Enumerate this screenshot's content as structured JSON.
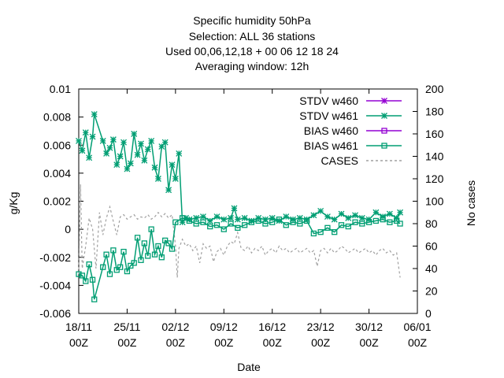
{
  "chart_data": {
    "type": "line",
    "title_lines": [
      "Specific humidity 50hPa",
      "Selection: ALL     36 stations",
      "Used  00,06,12,18  + 00 06 12 18 24",
      "Averaging window: 12h"
    ],
    "xlabel": "Date",
    "ylabel": "g/Kg",
    "y2label": "No cases",
    "ylim": [
      -0.006,
      0.01
    ],
    "y2lim": [
      0,
      200
    ],
    "xlim": [
      0,
      49
    ],
    "x_ticks": [
      {
        "x": 0,
        "l1": "18/11",
        "l2": "00Z"
      },
      {
        "x": 7,
        "l1": "25/11",
        "l2": "00Z"
      },
      {
        "x": 14,
        "l1": "02/12",
        "l2": "00Z"
      },
      {
        "x": 21,
        "l1": "09/12",
        "l2": "00Z"
      },
      {
        "x": 28,
        "l1": "16/12",
        "l2": "00Z"
      },
      {
        "x": 35,
        "l1": "23/12",
        "l2": "00Z"
      },
      {
        "x": 42,
        "l1": "30/12",
        "l2": "00Z"
      },
      {
        "x": 49,
        "l1": "06/01",
        "l2": "00Z"
      }
    ],
    "y_ticks": [
      "0.01",
      "0.008",
      "0.006",
      "0.004",
      "0.002",
      "0",
      "-0.002",
      "-0.004",
      "-0.006"
    ],
    "y_tick_values": [
      0.01,
      0.008,
      0.006,
      0.004,
      0.002,
      0,
      -0.002,
      -0.004,
      -0.006
    ],
    "y2_ticks": [
      "200",
      "180",
      "160",
      "140",
      "120",
      "100",
      "80",
      "60",
      "40",
      "20",
      "0"
    ],
    "y2_tick_values": [
      200,
      180,
      160,
      140,
      120,
      100,
      80,
      60,
      40,
      20,
      0
    ],
    "legend_position": "top-right",
    "grid": false,
    "series": [
      {
        "name": "STDV w460",
        "axis": "y1",
        "marker": "star",
        "color": "#9400d3",
        "points": []
      },
      {
        "name": "STDV w461",
        "axis": "y1",
        "marker": "star",
        "color": "#009e73",
        "points": [
          [
            0,
            0.0063
          ],
          [
            0.5,
            0.0056
          ],
          [
            1,
            0.0069
          ],
          [
            1.5,
            0.0051
          ],
          [
            2,
            0.0066
          ],
          [
            2.25,
            0.0082
          ],
          [
            3.5,
            0.0063
          ],
          [
            4,
            0.0054
          ],
          [
            4.5,
            0.0058
          ],
          [
            5,
            0.0064
          ],
          [
            5.5,
            0.0046
          ],
          [
            6,
            0.0052
          ],
          [
            6.5,
            0.0062
          ],
          [
            7,
            0.0043
          ],
          [
            7.5,
            0.0047
          ],
          [
            8,
            0.0068
          ],
          [
            8.5,
            0.0053
          ],
          [
            9,
            0.0061
          ],
          [
            9.5,
            0.0049
          ],
          [
            10,
            0.0057
          ],
          [
            10.5,
            0.0063
          ],
          [
            11,
            0.0044
          ],
          [
            11.5,
            0.0036
          ],
          [
            12,
            0.0059
          ],
          [
            12.5,
            0.0062
          ],
          [
            13,
            0.0028
          ],
          [
            13.5,
            0.0046
          ],
          [
            14,
            0.0036
          ],
          [
            14.5,
            0.0054
          ],
          [
            15,
            0.0005
          ],
          [
            15.5,
            0.0008
          ],
          [
            16,
            0.0007
          ],
          [
            17,
            0.0008
          ],
          [
            18,
            0.0009
          ],
          [
            19,
            0.0006
          ],
          [
            20,
            0.0009
          ],
          [
            21,
            0.0007
          ],
          [
            22,
            0.0008
          ],
          [
            22.5,
            0.0015
          ],
          [
            23,
            0.0007
          ],
          [
            24,
            0.0008
          ],
          [
            25,
            0.0006
          ],
          [
            26,
            0.0008
          ],
          [
            27,
            0.0007
          ],
          [
            28,
            0.0008
          ],
          [
            29,
            0.0006
          ],
          [
            30,
            0.0009
          ],
          [
            31,
            0.0007
          ],
          [
            32,
            0.0008
          ],
          [
            33,
            0.0007
          ],
          [
            34,
            0.001
          ],
          [
            35,
            0.0013
          ],
          [
            36,
            0.0009
          ],
          [
            37,
            0.0007
          ],
          [
            38,
            0.0011
          ],
          [
            39,
            0.0008
          ],
          [
            40,
            0.001
          ],
          [
            41,
            0.0008
          ],
          [
            42,
            0.0007
          ],
          [
            43,
            0.0012
          ],
          [
            44,
            0.0009
          ],
          [
            45,
            0.0011
          ],
          [
            46,
            0.0008
          ],
          [
            46.5,
            0.0012
          ]
        ]
      },
      {
        "name": "BIAS w460",
        "axis": "y1",
        "marker": "square",
        "color": "#9400d3",
        "points": []
      },
      {
        "name": "BIAS w461",
        "axis": "y1",
        "marker": "square",
        "color": "#009e73",
        "points": [
          [
            0,
            -0.0032
          ],
          [
            0.5,
            -0.0033
          ],
          [
            1,
            -0.0037
          ],
          [
            1.5,
            -0.0025
          ],
          [
            2,
            -0.0036
          ],
          [
            2.25,
            -0.005
          ],
          [
            3.5,
            -0.0027
          ],
          [
            4,
            -0.0018
          ],
          [
            4.5,
            -0.0032
          ],
          [
            5,
            -0.0015
          ],
          [
            5.5,
            -0.0029
          ],
          [
            6,
            -0.0027
          ],
          [
            6.5,
            -0.0016
          ],
          [
            7,
            -0.003
          ],
          [
            7.5,
            -0.0026
          ],
          [
            8,
            -0.0024
          ],
          [
            8.5,
            -0.0006
          ],
          [
            9,
            -0.0022
          ],
          [
            9.5,
            -0.001
          ],
          [
            10,
            -0.0019
          ],
          [
            10.5,
            0.0
          ],
          [
            11,
            -0.0018
          ],
          [
            11.5,
            -0.0012
          ],
          [
            12,
            -0.002
          ],
          [
            12.5,
            -0.0008
          ],
          [
            13,
            -0.001
          ],
          [
            13.5,
            -0.0014
          ],
          [
            14,
            0.0005
          ],
          [
            15,
            0.0008
          ],
          [
            16,
            0.0006
          ],
          [
            17,
            0.0004
          ],
          [
            18,
            0.0005
          ],
          [
            19,
            0.0002
          ],
          [
            20,
            0.0003
          ],
          [
            21,
            0.0
          ],
          [
            22,
            0.0004
          ],
          [
            23,
            0.0001
          ],
          [
            24,
            0.0003
          ],
          [
            25,
            0.0005
          ],
          [
            26,
            0.0006
          ],
          [
            27,
            0.0004
          ],
          [
            28,
            0.0005
          ],
          [
            29,
            0.0007
          ],
          [
            30,
            0.0003
          ],
          [
            31,
            0.0005
          ],
          [
            32,
            0.0004
          ],
          [
            33,
            0.0006
          ],
          [
            34,
            -0.0003
          ],
          [
            35,
            -0.0002
          ],
          [
            36,
            0.0001
          ],
          [
            37,
            -0.0002
          ],
          [
            38,
            0.0003
          ],
          [
            39,
            0.0002
          ],
          [
            40,
            0.0005
          ],
          [
            41,
            0.0004
          ],
          [
            42,
            0.0005
          ],
          [
            43,
            0.0006
          ],
          [
            44,
            0.0007
          ],
          [
            45,
            0.0005
          ],
          [
            46,
            0.0006
          ],
          [
            46.5,
            0.0004
          ]
        ]
      },
      {
        "name": "CASES",
        "axis": "y2",
        "marker": "none",
        "color": "#a0a0a0",
        "dashed": true,
        "points": [
          [
            0,
            35
          ],
          [
            0.25,
            115
          ],
          [
            0.5,
            40
          ],
          [
            1,
            60
          ],
          [
            1.5,
            85
          ],
          [
            2,
            75
          ],
          [
            2.5,
            40
          ],
          [
            3,
            90
          ],
          [
            3.5,
            70
          ],
          [
            4,
            85
          ],
          [
            4.5,
            95
          ],
          [
            5,
            82
          ],
          [
            5.5,
            70
          ],
          [
            6,
            86
          ],
          [
            6.5,
            88
          ],
          [
            7,
            84
          ],
          [
            7.5,
            86
          ],
          [
            8,
            88
          ],
          [
            8.5,
            84
          ],
          [
            9,
            86
          ],
          [
            9.5,
            85
          ],
          [
            10,
            88
          ],
          [
            10.5,
            84
          ],
          [
            11,
            86
          ],
          [
            11.5,
            90
          ],
          [
            12,
            86
          ],
          [
            12.5,
            89
          ],
          [
            13,
            85
          ],
          [
            13.5,
            88
          ],
          [
            14,
            60
          ],
          [
            14.25,
            32
          ],
          [
            14.5,
            58
          ],
          [
            15,
            66
          ],
          [
            15.5,
            60
          ],
          [
            16,
            62
          ],
          [
            16.5,
            56
          ],
          [
            17,
            60
          ],
          [
            17.5,
            45
          ],
          [
            18,
            62
          ],
          [
            18.5,
            58
          ],
          [
            19,
            60
          ],
          [
            19.5,
            46
          ],
          [
            20,
            55
          ],
          [
            20.5,
            58
          ],
          [
            21,
            52
          ],
          [
            21.5,
            60
          ],
          [
            22,
            64
          ],
          [
            22.5,
            62
          ],
          [
            23,
            72
          ],
          [
            23.5,
            58
          ],
          [
            24,
            56
          ],
          [
            24.5,
            60
          ],
          [
            25,
            54
          ],
          [
            25.5,
            58
          ],
          [
            26,
            56
          ],
          [
            26.5,
            60
          ],
          [
            27,
            52
          ],
          [
            27.5,
            56
          ],
          [
            28,
            58
          ],
          [
            28.5,
            54
          ],
          [
            29,
            60
          ],
          [
            29.5,
            56
          ],
          [
            30,
            58
          ],
          [
            30.5,
            54
          ],
          [
            31,
            56
          ],
          [
            31.5,
            58
          ],
          [
            32,
            54
          ],
          [
            32.5,
            56
          ],
          [
            33,
            58
          ],
          [
            33.5,
            54
          ],
          [
            34,
            56
          ],
          [
            34.5,
            42
          ],
          [
            35,
            56
          ],
          [
            35.5,
            58
          ],
          [
            36,
            54
          ],
          [
            36.5,
            58
          ],
          [
            37,
            54
          ],
          [
            37.5,
            56
          ],
          [
            38,
            60
          ],
          [
            38.5,
            58
          ],
          [
            39,
            54
          ],
          [
            39.5,
            56
          ],
          [
            40,
            58
          ],
          [
            40.5,
            54
          ],
          [
            41,
            56
          ],
          [
            41.5,
            58
          ],
          [
            42,
            54
          ],
          [
            42.5,
            56
          ],
          [
            43,
            52
          ],
          [
            43.5,
            56
          ],
          [
            44,
            58
          ],
          [
            44.5,
            54
          ],
          [
            45,
            56
          ],
          [
            45.5,
            52
          ],
          [
            46,
            54
          ],
          [
            46.5,
            32
          ]
        ]
      }
    ]
  }
}
